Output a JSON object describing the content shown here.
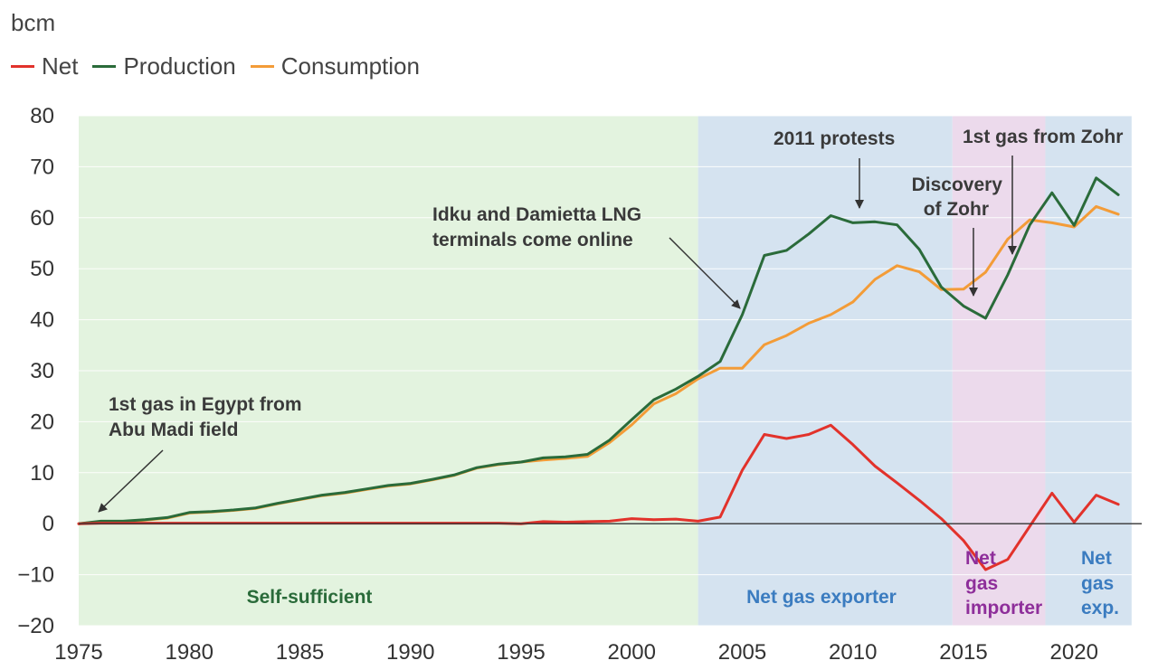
{
  "chart_data": {
    "type": "line",
    "unit_label": "bcm",
    "xlim": [
      1975,
      2022
    ],
    "ylim": [
      -20,
      80
    ],
    "x_ticks": [
      1975,
      1980,
      1985,
      1990,
      1995,
      2000,
      2005,
      2010,
      2015,
      2020
    ],
    "y_ticks": [
      -20,
      -10,
      0,
      10,
      20,
      30,
      40,
      50,
      60,
      70,
      80
    ],
    "x_tick_labels": [
      "1975",
      "1980",
      "1985",
      "1990",
      "1995",
      "2000",
      "2005",
      "2010",
      "2015",
      "2020"
    ],
    "y_tick_labels": [
      "−20",
      "−10",
      "0",
      "10",
      "20",
      "30",
      "40",
      "50",
      "60",
      "70",
      "80"
    ],
    "x": [
      1975,
      1976,
      1977,
      1978,
      1979,
      1980,
      1981,
      1982,
      1983,
      1984,
      1985,
      1986,
      1987,
      1988,
      1989,
      1990,
      1991,
      1992,
      1993,
      1994,
      1995,
      1996,
      1997,
      1998,
      1999,
      2000,
      2001,
      2002,
      2003,
      2004,
      2005,
      2006,
      2007,
      2008,
      2009,
      2010,
      2011,
      2012,
      2013,
      2014,
      2015,
      2016,
      2017,
      2018,
      2019,
      2020,
      2021,
      2022
    ],
    "series": [
      {
        "name": "Net",
        "color": "#e2322b",
        "values": [
          0,
          0.1,
          0.1,
          0.1,
          0.1,
          0.1,
          0.1,
          0.1,
          0.1,
          0.1,
          0.1,
          0.1,
          0.1,
          0.1,
          0.1,
          0.1,
          0.1,
          0.1,
          0.1,
          0.1,
          0,
          0.4,
          0.3,
          0.4,
          0.5,
          1.0,
          0.8,
          0.9,
          0.5,
          1.3,
          10.5,
          17.5,
          16.7,
          17.5,
          19.3,
          15.5,
          11.3,
          8.0,
          4.6,
          1.0,
          -3.3,
          -9.0,
          -7.0,
          -0.5,
          6.0,
          0.3,
          5.6,
          3.8
        ]
      },
      {
        "name": "Production",
        "color": "#2a6b3a",
        "values": [
          0,
          0.5,
          0.5,
          0.8,
          1.2,
          2.2,
          2.4,
          2.7,
          3.1,
          4.0,
          4.8,
          5.6,
          6.1,
          6.8,
          7.5,
          7.9,
          8.7,
          9.6,
          11.0,
          11.7,
          12.1,
          12.9,
          13.1,
          13.6,
          16.4,
          20.4,
          24.3,
          26.4,
          28.9,
          31.8,
          41.0,
          52.6,
          53.6,
          56.8,
          60.4,
          59.0,
          59.2,
          58.6,
          53.8,
          46.4,
          42.7,
          40.3,
          48.8,
          58.6,
          64.9,
          58.5,
          67.8,
          64.5
        ]
      },
      {
        "name": "Consumption",
        "color": "#f39c38",
        "values": [
          0,
          0.4,
          0.4,
          0.7,
          1.1,
          2.1,
          2.3,
          2.6,
          3.0,
          3.9,
          4.7,
          5.5,
          6.0,
          6.7,
          7.4,
          7.8,
          8.6,
          9.5,
          10.9,
          11.6,
          12.1,
          12.5,
          12.8,
          13.2,
          15.9,
          19.4,
          23.5,
          25.5,
          28.4,
          30.5,
          30.5,
          35.1,
          36.9,
          39.3,
          41.0,
          43.5,
          47.9,
          50.6,
          49.4,
          45.9,
          46.0,
          49.3,
          55.8,
          59.6,
          59.0,
          58.2,
          62.2,
          60.7
        ]
      }
    ],
    "regions": [
      {
        "label": "Self-sufficient",
        "from": 1975,
        "to": 2003,
        "fill": "#e3f3df",
        "text_color": "#2a6b3a"
      },
      {
        "label": "Net gas exporter",
        "from": 2003,
        "to": 2014.5,
        "fill": "#d5e3f0",
        "text_color": "#3b7cc0"
      },
      {
        "label": "Net gas importer",
        "from": 2014.5,
        "to": 2018.7,
        "fill": "#ecdaec",
        "text_color": "#8e2e9a"
      },
      {
        "label": "Net gas exp.",
        "from": 2018.7,
        "to": 2022.6,
        "fill": "#d5e3f0",
        "text_color": "#3b7cc0"
      }
    ],
    "annotations": [
      {
        "text": "1st gas in Egypt from Abu Madi field"
      },
      {
        "text": "Idku and Damietta LNG terminals come online"
      },
      {
        "text": "2011 protests"
      },
      {
        "text": "Discovery of Zohr"
      },
      {
        "text": "1st gas from Zohr"
      }
    ]
  },
  "legend": {
    "items": [
      {
        "label": "Net",
        "color": "#e2322b"
      },
      {
        "label": "Production",
        "color": "#2a6b3a"
      },
      {
        "label": "Consumption",
        "color": "#f39c38"
      }
    ]
  },
  "texts": {
    "region_1": "Self-sufficient",
    "region_2": "Net gas exporter",
    "region_3_l1": "Net",
    "region_3_l2": "gas",
    "region_3_l3": "importer",
    "region_4_l1": "Net",
    "region_4_l2": "gas",
    "region_4_l3": "exp.",
    "ann_abu_l1": "1st gas in Egypt from",
    "ann_abu_l2": "Abu Madi field",
    "ann_lng_l1": "Idku and Damietta LNG",
    "ann_lng_l2": "terminals come online",
    "ann_protests": "2011 protests",
    "ann_discovery_l1": "Discovery",
    "ann_discovery_l2": "of Zohr",
    "ann_zohr": "1st gas from Zohr"
  }
}
